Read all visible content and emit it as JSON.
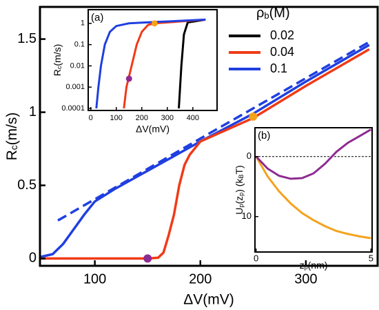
{
  "chart_data": [
    {
      "type": "line",
      "x_label": "ΔV(mV)",
      "y_label": [
        "R",
        "c",
        "(m/s)"
      ],
      "xlim": [
        48,
        368
      ],
      "ylim": [
        -0.05,
        1.72
      ],
      "xticks": [
        100,
        200,
        300
      ],
      "yticks": [
        0,
        0.5,
        1,
        1.5
      ],
      "series": [
        {
          "color": "#1f3fe0",
          "dash": true,
          "x": [
            65,
            200,
            360
          ],
          "values": [
            0.26,
            0.82,
            1.48
          ]
        },
        {
          "color": "#1f3fe0",
          "x": [
            48,
            60,
            70,
            80,
            90,
            100,
            120,
            150,
            200,
            250,
            300,
            360
          ],
          "values": [
            0.01,
            0.03,
            0.1,
            0.2,
            0.3,
            0.39,
            0.48,
            0.6,
            0.8,
            0.99,
            1.21,
            1.46
          ]
        },
        {
          "color": "#f03a17",
          "x": [
            48,
            150,
            160,
            165,
            170,
            175,
            180,
            185,
            190,
            200,
            250,
            300,
            360
          ],
          "values": [
            0,
            0,
            0.005,
            0.04,
            0.16,
            0.3,
            0.5,
            0.64,
            0.71,
            0.8,
            0.96,
            1.18,
            1.43
          ]
        },
        {
          "color": "#8e2b91",
          "marker": true,
          "x": [
            150
          ],
          "values": [
            0
          ]
        },
        {
          "color": "#f5a21b",
          "marker": true,
          "x": [
            250
          ],
          "values": [
            0.97
          ]
        }
      ]
    },
    {
      "type": "line",
      "panel": "(a)",
      "x_label": "ΔV(mV)",
      "y_label": [
        "R",
        "c",
        "(m/s)"
      ],
      "xlim": [
        -10,
        495
      ],
      "ylim": [
        8e-05,
        4.4
      ],
      "ylog": true,
      "xticks": [
        0,
        100,
        200,
        300,
        400
      ],
      "yticks": [
        0.0001,
        0.001,
        0.01,
        0.1,
        1
      ],
      "legend": "right",
      "legend_title": [
        "ρ",
        "b",
        "(M)"
      ],
      "series": [
        {
          "name": "0.02",
          "color": "#000000",
          "x": [
            345,
            355,
            365,
            380,
            450
          ],
          "values": [
            0.0001,
            0.01,
            0.3,
            1.1,
            1.5
          ]
        },
        {
          "name": "0.04",
          "color": "#f03a17",
          "x": [
            130,
            140,
            160,
            180,
            200,
            225,
            250,
            450
          ],
          "values": [
            0.0001,
            0.001,
            0.01,
            0.1,
            0.4,
            0.85,
            1,
            1.5
          ]
        },
        {
          "name": "0.1",
          "color": "#1f3fe0",
          "x": [
            22,
            30,
            40,
            55,
            75,
            100,
            150,
            250,
            450
          ],
          "values": [
            0.0001,
            0.001,
            0.01,
            0.1,
            0.4,
            0.75,
            1,
            1.15,
            1.5
          ]
        },
        {
          "color": "#8e2b91",
          "marker": true,
          "x": [
            150
          ],
          "values": [
            0.0025
          ]
        },
        {
          "color": "#f5a21b",
          "marker": true,
          "x": [
            250
          ],
          "values": [
            1
          ]
        }
      ]
    },
    {
      "type": "line",
      "panel": "(b)",
      "x_label": [
        "z",
        "p",
        "(nm)"
      ],
      "y_label": [
        "U",
        "p",
        "(z",
        "p",
        ") (k",
        "B",
        "T)"
      ],
      "xlim": [
        -0.05,
        5.05
      ],
      "ylim": [
        -4.8,
        15.9
      ],
      "yinverted": true,
      "zero_line": true,
      "xticks": [
        0,
        5
      ],
      "yticks": [
        0,
        10
      ],
      "series": [
        {
          "color": "#f5a21b",
          "x": [
            0,
            0.5,
            1,
            1.5,
            2,
            2.5,
            3,
            3.5,
            4,
            4.5,
            5
          ],
          "values": [
            0,
            3.3,
            5.8,
            7.8,
            9.4,
            10.6,
            11.6,
            12.4,
            12.9,
            13.3,
            13.6
          ]
        },
        {
          "color": "#8e2b91",
          "x": [
            0,
            0.5,
            1,
            1.5,
            2,
            2.5,
            3,
            3.5,
            4,
            4.5,
            5
          ],
          "values": [
            0,
            2,
            3.2,
            3.7,
            3.6,
            2.8,
            1.2,
            -0.8,
            -2.3,
            -3.4,
            -4.5
          ]
        }
      ]
    }
  ]
}
